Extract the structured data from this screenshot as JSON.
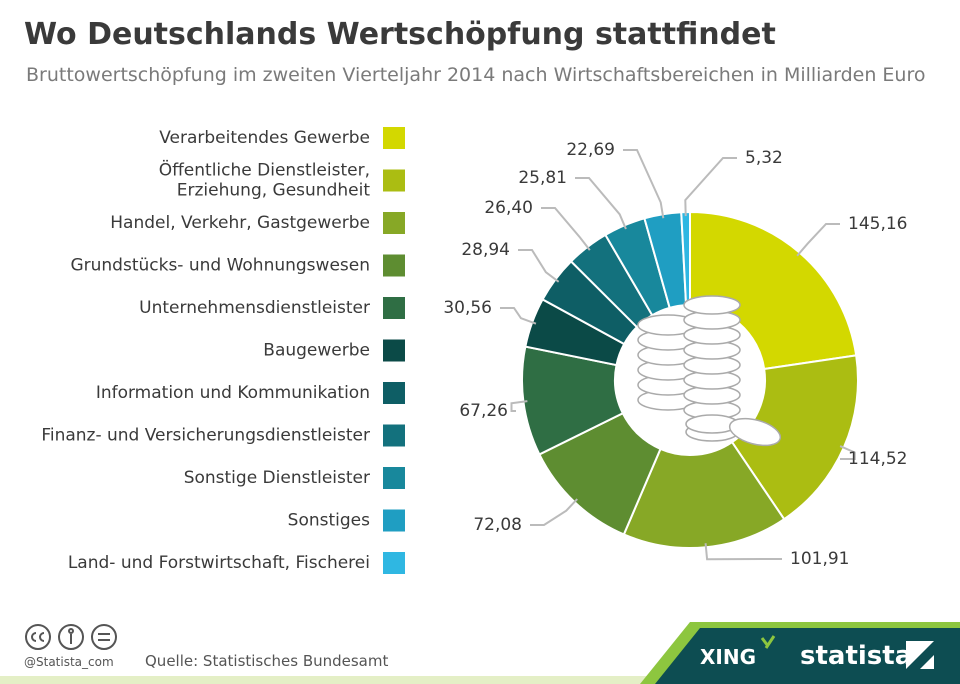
{
  "chart_data": {
    "type": "donut",
    "title": "Wo Deutschlands Wertschöpfung stattfindet",
    "subtitle": "Bruttowertschöpfung im zweiten Vierteljahr 2014 nach Wirtschaftsbereichen in Milliarden Euro",
    "categories": [
      "Verarbeitendes Gewerbe",
      "Öffentliche Dienstleister,\nErziehung, Gesundheit",
      "Handel, Verkehr, Gastgewerbe",
      "Grundstücks- und Wohnungswesen",
      "Unternehmensdienstleister",
      "Baugewerbe",
      "Information und Kommunikation",
      "Finanz- und Versicherungsdienstleister",
      "Sonstige Dienstleister",
      "Sonstiges",
      "Land- und Forstwirtschaft, Fischerei"
    ],
    "values": [
      145.16,
      114.52,
      101.91,
      72.08,
      67.26,
      30.56,
      28.94,
      26.4,
      25.81,
      22.69,
      5.32
    ],
    "value_labels": [
      "145,16",
      "114,52",
      "101,91",
      "72,08",
      "67,26",
      "30,56",
      "28,94",
      "26,40",
      "25,81",
      "22,69",
      "5,32"
    ],
    "colors": [
      "#d3d800",
      "#abbd12",
      "#87a826",
      "#5e8d31",
      "#2f6e44",
      "#0b4a47",
      "#0e5e65",
      "#13717d",
      "#18889c",
      "#1f9ec2",
      "#2fb7e2"
    ]
  },
  "footer": {
    "handle": "@Statista_com",
    "source": "Quelle: Statistisches Bundesamt",
    "brand1": "XING",
    "brand2": "statista"
  }
}
